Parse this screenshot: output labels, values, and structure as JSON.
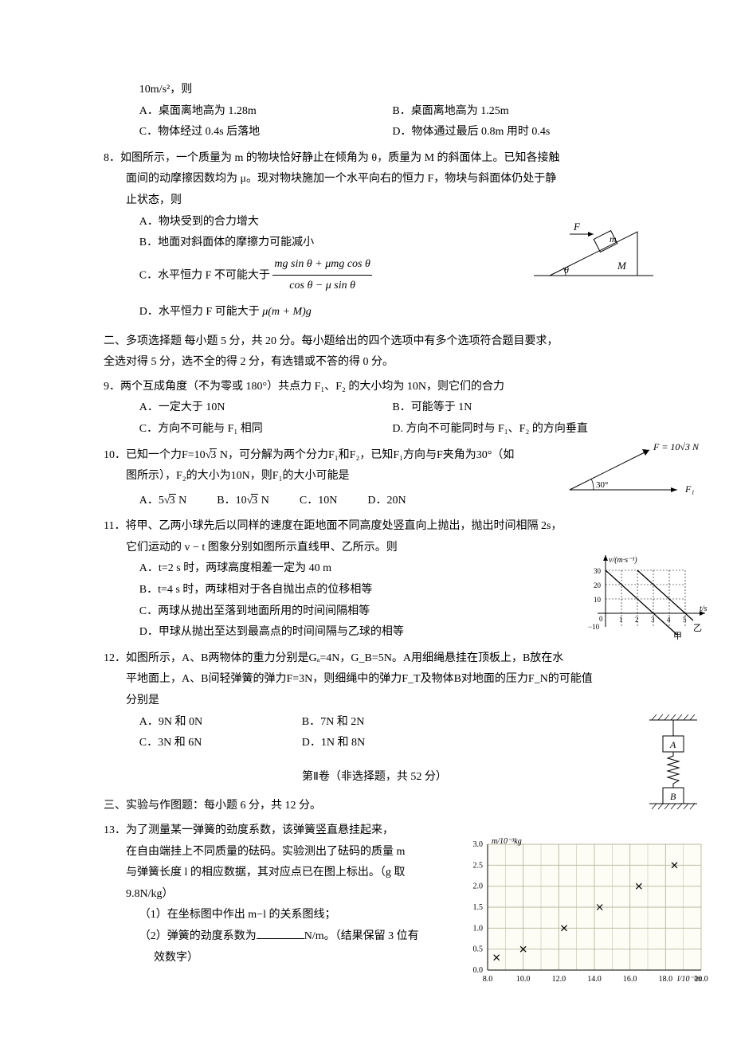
{
  "q7": {
    "tail": "10m/s²，则",
    "optA": "A．桌面离地高为 1.28m",
    "optB": "B．桌面离地高为 1.25m",
    "optC": "C．物体经过 0.4s 后落地",
    "optD": "D．物体通过最后 0.8m 用时 0.4s"
  },
  "q8": {
    "stem1": "8．如图所示，一个质量为 m 的物块恰好静止在倾角为 θ，质量为 M 的斜面体上。已知各接触",
    "stem2": "面间的动摩擦因数均为 μ。现对物块施加一个水平向右的恒力 F，物块与斜面体仍处于静",
    "stem3": "止状态，则",
    "optA": "A．物块受到的合力增大",
    "optB": "B．地面对斜面体的摩擦力可能减小",
    "optC_pre": "C．水平恒力 F 不可能大于 ",
    "optC_num": "mg sin θ + μmg cos θ",
    "optC_den": "cos θ − μ sin θ",
    "optD_pre": "D．水平恒力 F 可能大于 ",
    "optD_expr": "μ(m + M)g",
    "fig": {
      "F": "F",
      "m": "m",
      "theta": "θ",
      "M": "M"
    }
  },
  "sec2": {
    "line1": "二、多项选择题 每小题 5 分，共 20 分。每小题给出的四个选项中有多个选项符合题目要求，",
    "line2": "全选对得 5 分，选不全的得 2 分，有选错或不答的得 0 分。"
  },
  "q9": {
    "stem": "9．两个互成角度（不为零或 180°）共点力 F₁、F₂ 的大小均为 10N，则它们的合力",
    "optA": "A．一定大于 10N",
    "optB": "B．可能等于 1N",
    "optC": "C．方向不可能与 F₁ 相同",
    "optD": "D. 方向不可能同时与 F₁、F₂ 的方向垂直"
  },
  "q10": {
    "stem1_pre": "10．已知一个力F=10",
    "stem1_sqrt": "3",
    "stem1_post": " N，可分解为两个分力F₁和F₂，已知F₁方向与F夹角为30°（如",
    "stem2": "图所示），F₂的大小为10N，则F₁的大小可能是",
    "optA_pre": "A．5",
    "optA_sqrt": "3",
    "optA_post": " N",
    "optB_pre": "B．10",
    "optB_sqrt": "3",
    "optB_post": " N",
    "optC": "C．10N",
    "optD": "D．20N",
    "fig": {
      "F_label": "F = 10√3 N",
      "angle": "30°",
      "F1": "F₁"
    }
  },
  "q11": {
    "stem1": "11．将甲、乙两小球先后以同样的速度在距地面不同高度处竖直向上抛出，抛出时间相隔 2s，",
    "stem2": "它们运动的 v − t 图象分别如图所示直线甲、乙所示。则",
    "optA": "A．t=2 s 时，两球高度相差一定为 40 m",
    "optB": "B．t=4 s 时，两球相对于各自抛出点的位移相等",
    "optC": "C．两球从抛出至落到地面所用的时间间隔相等",
    "optD": "D．甲球从抛出至达到最高点的时间间隔与乙球的相等",
    "fig": {
      "ylabel": "v/(m·s⁻¹)",
      "xlabel": "t/s",
      "yticks": [
        -10,
        0,
        10,
        20,
        30
      ],
      "xticks": [
        1,
        2,
        3,
        4,
        5
      ],
      "line1_label": "甲",
      "line2_label": "乙"
    }
  },
  "q12": {
    "stem1": "12．如图所示，A、B两物体的重力分别是Gₐ=4N，G_B=5N。A用细绳悬挂在顶板上，B放在水",
    "stem2": "平地面上，A、B间轻弹簧的弹力F=3N，则细绳中的弹力F_T及物体B对地面的压力F_N的可能值",
    "stem3": "分别是",
    "optA": "A．9N 和 0N",
    "optB": "B．7N 和 2N",
    "optC": "C．3N 和 6N",
    "optD": "D．1N 和 8N",
    "fig": {
      "A": "A",
      "B": "B"
    }
  },
  "part2_title": "第Ⅱ卷（非选择题，共 52 分）",
  "sec3": "三、实验与作图题：每小题 6 分，共 12 分。",
  "q13": {
    "stem1": "13．为了测量某一弹簧的劲度系数，该弹簧竖直悬挂起来，",
    "stem2": "在自由端挂上不同质量的砝码。实验测出了砝码的质量 m",
    "stem3": "与弹簧长度 l 的相应数据，其对应点已在图上标出。（g 取",
    "stem4": "9.8N/kg）",
    "sub1": "（1）在坐标图中作出 m−l 的关系图线；",
    "sub2_pre": "（2）弹簧的劲度系数为",
    "sub2_post": "N/m。（结果保留 3 位有",
    "sub2_cont": "效数字）",
    "fig": {
      "ylabel": "m/10⁻³kg",
      "xlabel": "l/10⁻²m",
      "yticks": [
        0.0,
        0.5,
        1.0,
        1.5,
        2.0,
        2.5,
        3.0
      ],
      "xticks": [
        8.0,
        10.0,
        12.0,
        14.0,
        16.0,
        18.0,
        20.0
      ],
      "points": [
        {
          "x": 8.5,
          "y": 0.3
        },
        {
          "x": 10.0,
          "y": 0.5
        },
        {
          "x": 12.3,
          "y": 1.0
        },
        {
          "x": 14.3,
          "y": 1.5
        },
        {
          "x": 16.5,
          "y": 2.0
        },
        {
          "x": 18.5,
          "y": 2.5
        }
      ],
      "grid_color": "#b8b8a0",
      "bg_color": "#fdfdf5"
    }
  }
}
